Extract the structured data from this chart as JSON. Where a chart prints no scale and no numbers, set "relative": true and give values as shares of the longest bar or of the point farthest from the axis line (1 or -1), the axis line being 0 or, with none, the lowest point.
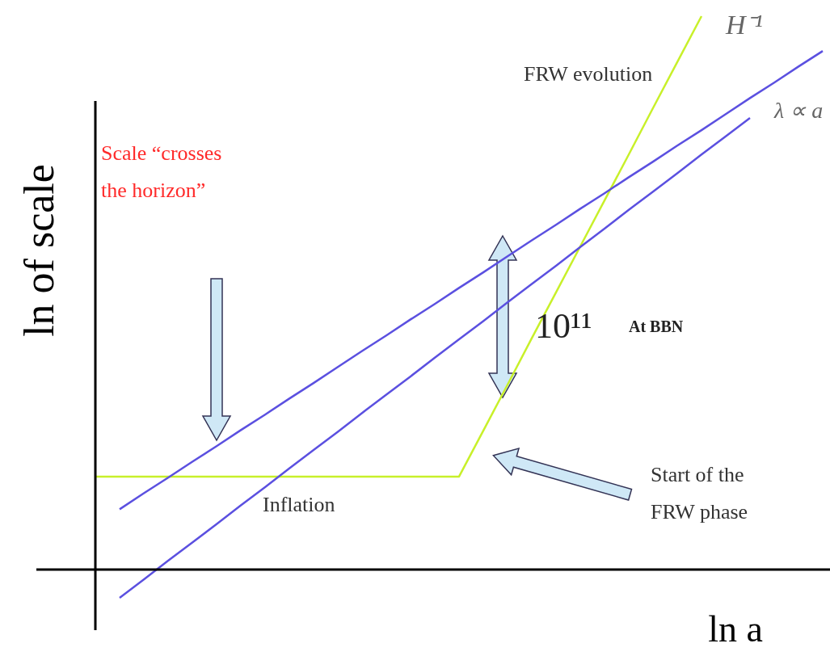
{
  "chart_data": {
    "type": "line",
    "relative": true,
    "xlabel": "ln a",
    "ylabel": "ln of scale",
    "categories": [
      null,
      null,
      null,
      null,
      null,
      null,
      null,
      null,
      null,
      null,
      null,
      null,
      null,
      null,
      null,
      null,
      null,
      null,
      null,
      null,
      null,
      null,
      null,
      null,
      null,
      null,
      null,
      null,
      null,
      null,
      null
    ],
    "series": [
      {
        "name": "H⁻¹",
        "color": "#c8f02a",
        "values": [
          0.168,
          0.168,
          0.168,
          0.168,
          0.168,
          0.168,
          0.168,
          0.168,
          0.168,
          0.168,
          0.168,
          0.168,
          0.168,
          0.168,
          0.168,
          0.168,
          0.251,
          0.334,
          0.418,
          0.501,
          0.584,
          0.667,
          0.75,
          0.834,
          0.917,
          1.0,
          null,
          null,
          null,
          null,
          null
        ]
      },
      {
        "color": "#5b50e0",
        "values": [
          null,
          0.109,
          0.138,
          0.166,
          0.195,
          0.223,
          0.252,
          0.28,
          0.309,
          0.337,
          0.366,
          0.395,
          0.423,
          0.452,
          0.48,
          0.509,
          0.537,
          0.566,
          0.595,
          0.623,
          0.652,
          0.68,
          0.709,
          0.737,
          0.766,
          0.794,
          0.823,
          0.852,
          0.88,
          0.909,
          0.937
        ]
      },
      {
        "name": "λ ∝ a",
        "color": "#5b50e0",
        "values": [
          null,
          -0.051,
          -0.018,
          0.016,
          0.049,
          0.082,
          0.116,
          0.149,
          0.183,
          0.216,
          0.249,
          0.283,
          0.316,
          0.349,
          0.383,
          0.416,
          0.449,
          0.483,
          0.516,
          0.549,
          0.583,
          0.616,
          0.65,
          0.683,
          0.716,
          0.75,
          0.783,
          0.816,
          null,
          null,
          null
        ]
      }
    ],
    "annotations": [
      "FRW evolution",
      "Scale “crosses the horizon”",
      "10¹¹",
      "At BBN",
      "Inflation",
      "Start of the FRW phase"
    ]
  }
}
